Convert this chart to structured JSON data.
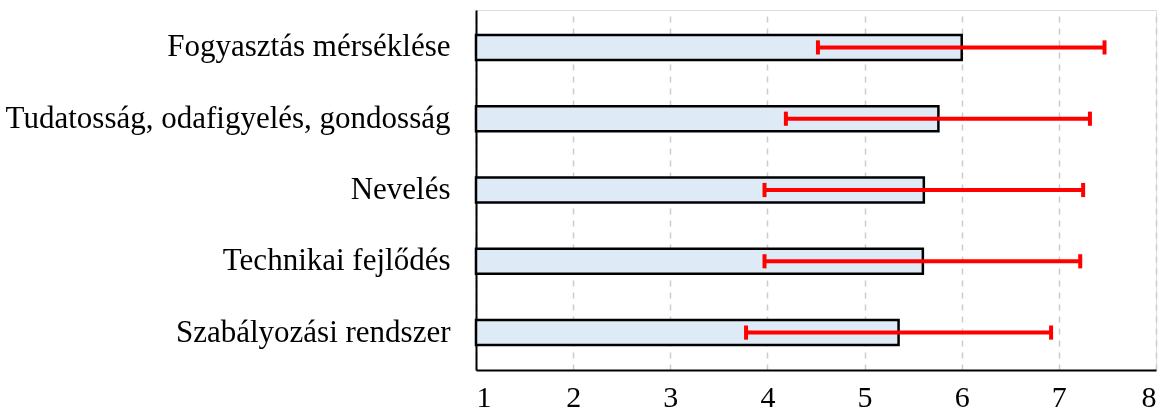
{
  "chart_data": {
    "type": "bar",
    "orientation": "horizontal",
    "categories": [
      "Fogyasztás mérséklése",
      "Tudatosság, odafigyelés, gondosság",
      "Nevelés",
      "Technikai fejlődés",
      "Szabályozási rendszer"
    ],
    "values": [
      6.0,
      5.76,
      5.61,
      5.6,
      5.35
    ],
    "errors": [
      [
        4.52,
        7.47
      ],
      [
        4.19,
        7.32
      ],
      [
        3.97,
        7.25
      ],
      [
        3.97,
        7.22
      ],
      [
        3.78,
        6.92
      ]
    ],
    "color": "#deebf7",
    "xlim": [
      1,
      8
    ],
    "xticks": [
      1,
      2,
      3,
      4,
      5,
      6,
      7,
      8
    ],
    "grid": "x"
  }
}
